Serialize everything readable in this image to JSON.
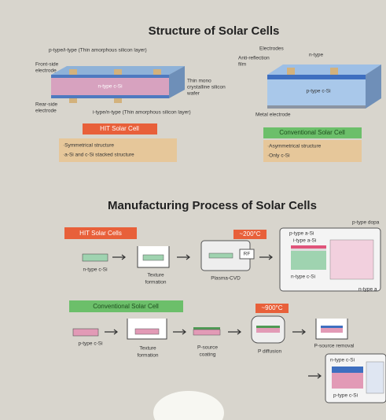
{
  "structure": {
    "title": "Structure of Solar Cells",
    "hit": {
      "top_layer": "p-type/i-type (Thin amorphous silicon layer)",
      "front_electrode": [
        "Front-side",
        "electrode"
      ],
      "wafer": "n-type c-Si",
      "wafer_note": [
        "Thin mono",
        "crystalline silicon",
        "wafer"
      ],
      "rear_electrode": [
        "Rear-side",
        "electrode"
      ],
      "bottom_layer": "i-type/n-type (Thin amorphous silicon layer)",
      "name": "HIT Solar Cell",
      "notes": [
        "·Symmetrical structure",
        "·a-Si and c-Si stacked structure"
      ]
    },
    "conventional": {
      "electrodes": "Electrodes",
      "n_type": "n-type",
      "anti_reflection": [
        "Anti-reflection",
        "film"
      ],
      "wafer": "p-type c-Si",
      "metal_electrode": "Metal electrode",
      "name": "Conventional Solar Cell",
      "notes": [
        "·Asymmetrical structure",
        "·Only c-Si"
      ]
    }
  },
  "process": {
    "title": "Manufacturing Process of Solar Cells",
    "hit": {
      "name": "HIT Solar Cells",
      "temperature": "~200°C",
      "start": "n-type c-Si",
      "texture": [
        "Texture",
        "formation"
      ],
      "rf": "RF",
      "cvd": "Plasma-CVD",
      "result_p": "p-type a-Si",
      "result_i": "i-type a-Si",
      "result_n": "n-type c-Si",
      "edge_top": "p-type dopa",
      "edge_bottom": "n-type a"
    },
    "conventional": {
      "name": "Conventional Solar Cell",
      "temperature": "~900°C",
      "start": "p-type c-Si",
      "texture": [
        "Texture",
        "formation"
      ],
      "coating": [
        "P-source",
        "coating"
      ],
      "diffusion": "P diffusion",
      "removal": "P-source removal",
      "result_n": "n-type c-Si",
      "result_p": "p-type c-Si"
    }
  }
}
